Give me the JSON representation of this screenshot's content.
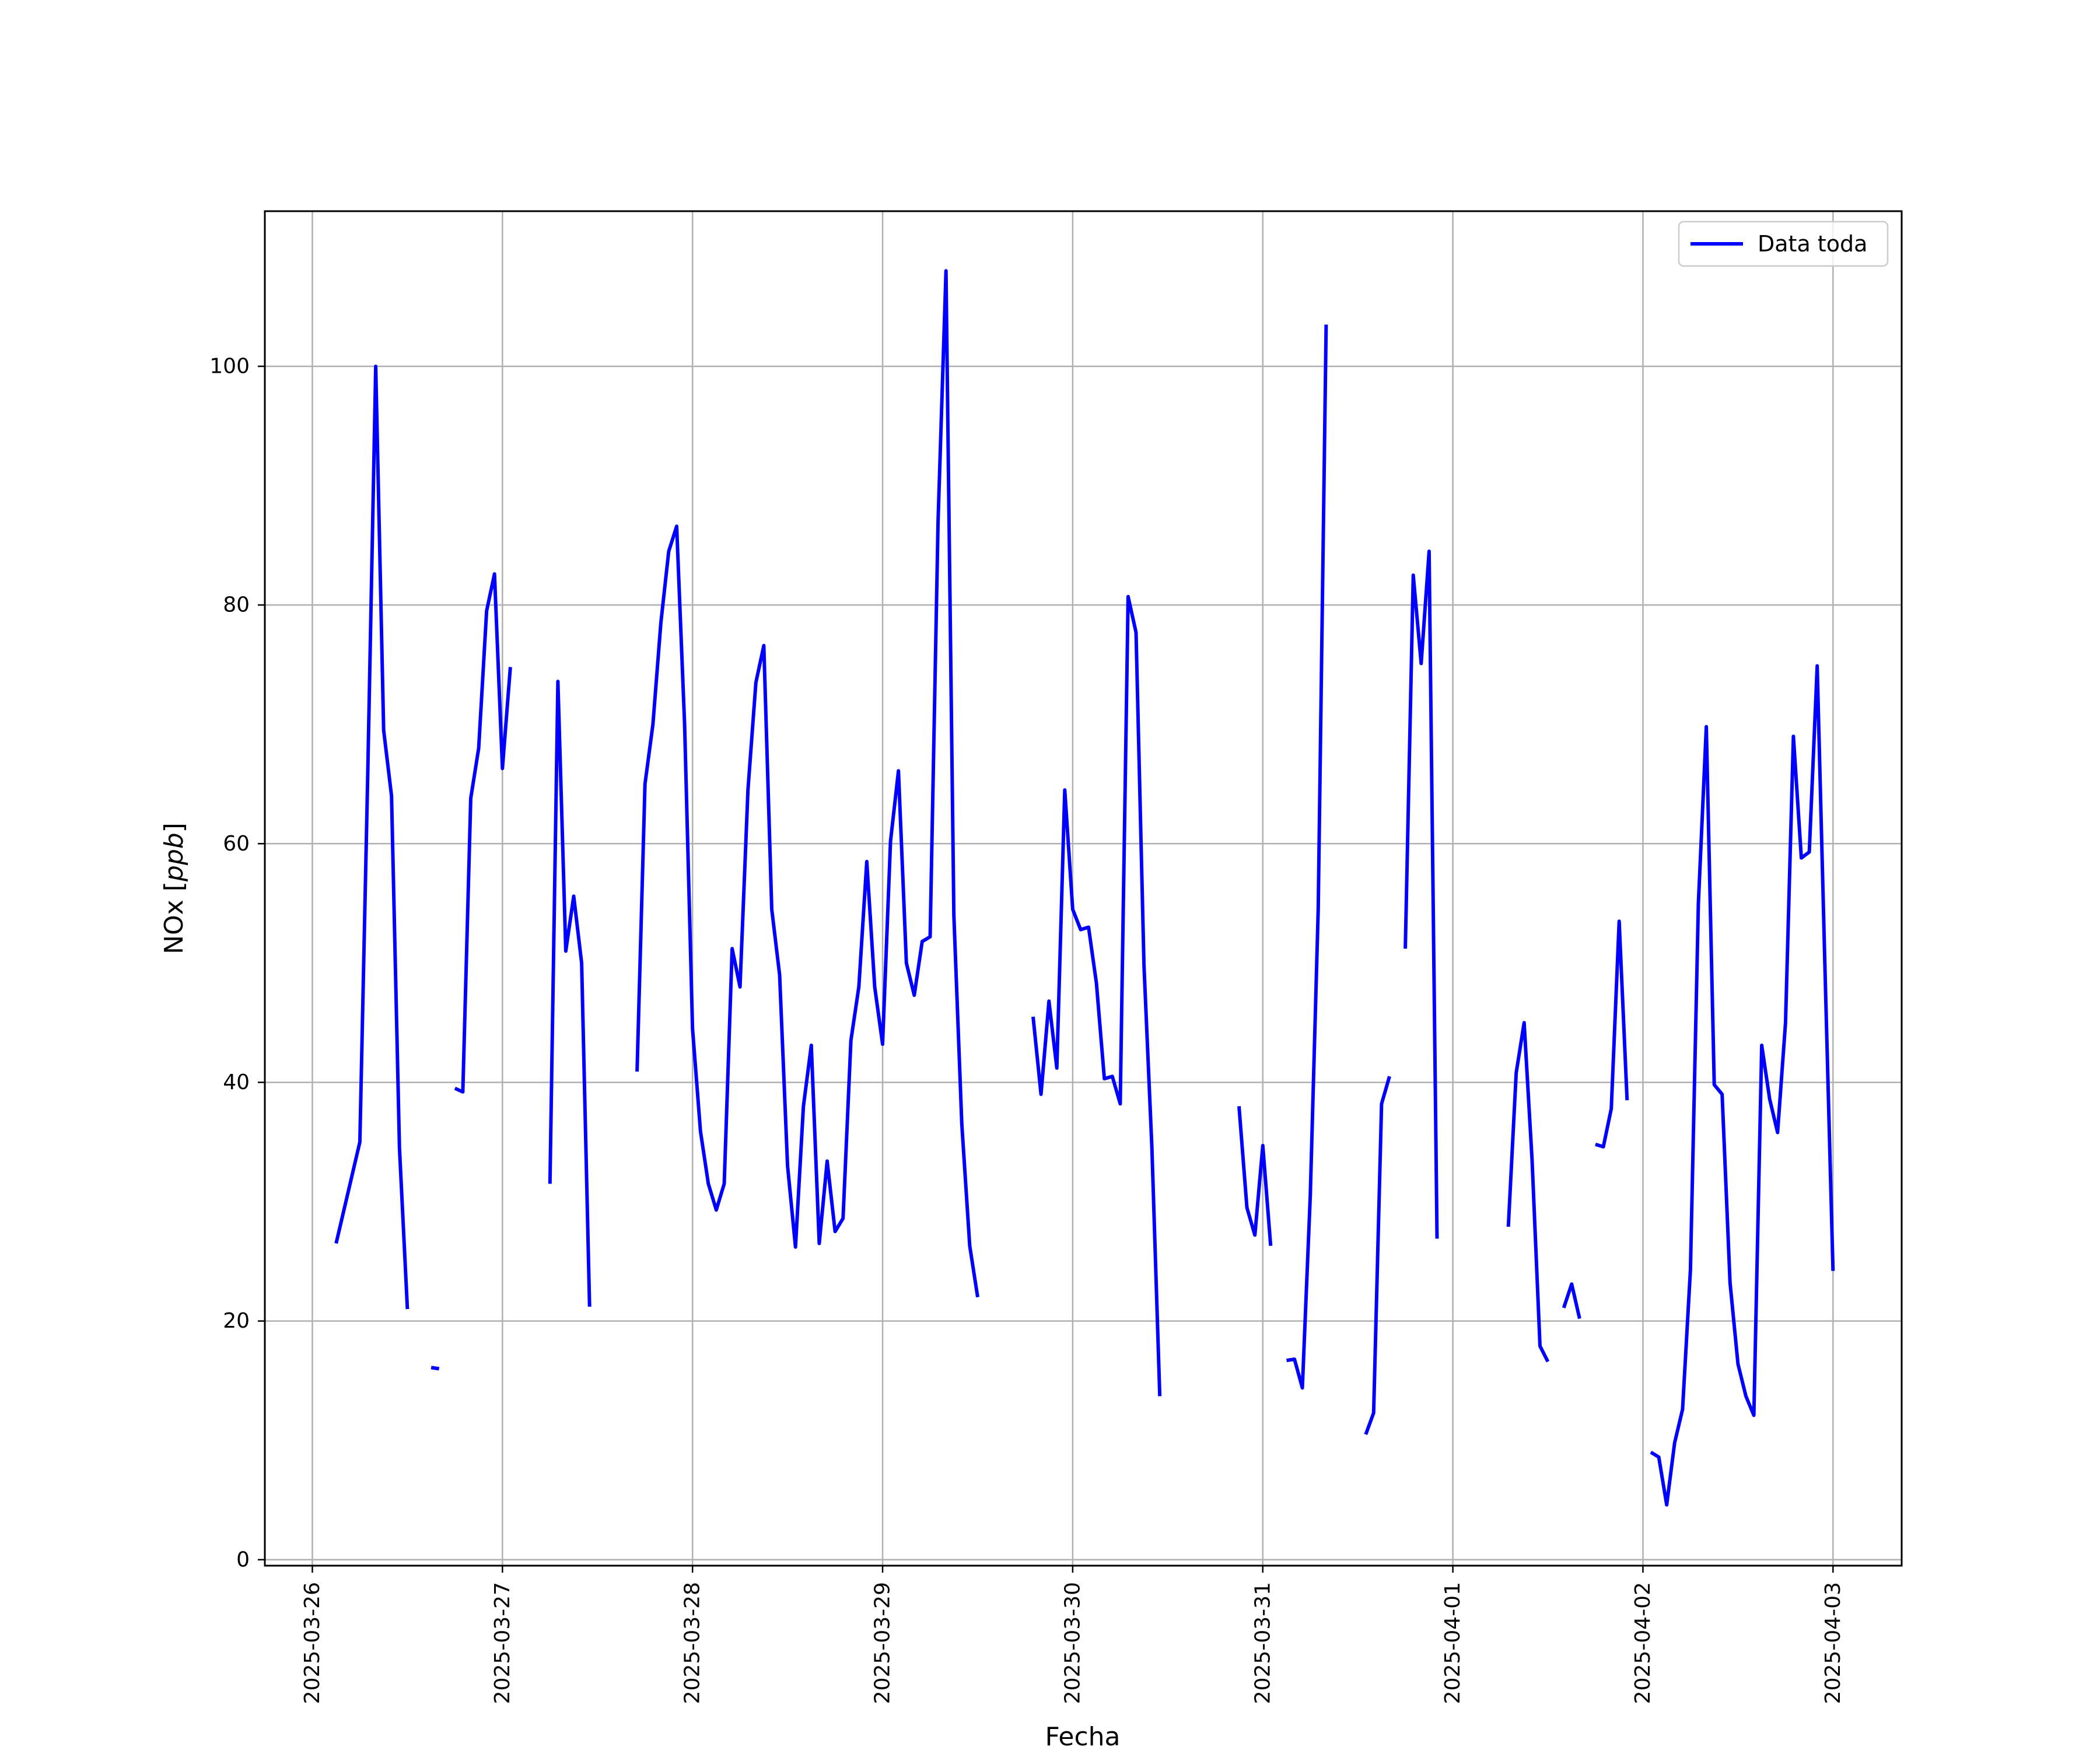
{
  "chart_data": {
    "type": "line",
    "title": "",
    "xlabel": "Fecha",
    "ylabel": "NOx [ppb]",
    "ylabel_parts": {
      "prefix": "NOx [",
      "unit": "ppb",
      "suffix": "]"
    },
    "xlim": [
      "2025-03-25 18:00",
      "2025-04-03 08:40"
    ],
    "ylim": [
      -0.5,
      113
    ],
    "x_ticks": [
      "2025-03-26",
      "2025-03-27",
      "2025-03-28",
      "2025-03-29",
      "2025-03-30",
      "2025-03-31",
      "2025-04-01",
      "2025-04-02",
      "2025-04-03"
    ],
    "y_ticks": [
      0,
      20,
      40,
      60,
      80,
      100
    ],
    "grid": true,
    "legend_position": "upper right",
    "series": [
      {
        "name": "Data toda",
        "color": "#0000ff",
        "segments": [
          [
            [
              "2025-03-26 03:00",
              26.5
            ],
            [
              "2025-03-26 06:00",
              35
            ],
            [
              "2025-03-26 07:00",
              66
            ],
            [
              "2025-03-26 08:00",
              100
            ],
            [
              "2025-03-26 09:00",
              69.5
            ],
            [
              "2025-03-26 10:00",
              64
            ],
            [
              "2025-03-26 11:00",
              34.5
            ],
            [
              "2025-03-26 12:00",
              21
            ]
          ],
          [
            [
              "2025-03-26 15:00",
              16.1
            ],
            [
              "2025-03-26 16:00",
              16
            ]
          ],
          [
            [
              "2025-03-26 18:00",
              39.5
            ],
            [
              "2025-03-26 19:00",
              39.2
            ],
            [
              "2025-03-26 20:00",
              63.8
            ],
            [
              "2025-03-26 21:00",
              68
            ],
            [
              "2025-03-26 22:00",
              79.5
            ],
            [
              "2025-03-26 23:00",
              82.6
            ],
            [
              "2025-03-27 00:00",
              66.3
            ],
            [
              "2025-03-27 01:00",
              74.8
            ]
          ],
          [
            [
              "2025-03-27 06:00",
              31.5
            ],
            [
              "2025-03-27 07:00",
              73.6
            ],
            [
              "2025-03-27 08:00",
              51
            ],
            [
              "2025-03-27 09:00",
              55.6
            ],
            [
              "2025-03-27 10:00",
              50
            ],
            [
              "2025-03-27 11:00",
              21.2
            ]
          ],
          [
            [
              "2025-03-27 17:00",
              40.9
            ],
            [
              "2025-03-27 18:00",
              65
            ],
            [
              "2025-03-27 19:00",
              70
            ],
            [
              "2025-03-27 20:00",
              78.5
            ],
            [
              "2025-03-27 21:00",
              84.5
            ],
            [
              "2025-03-27 22:00",
              86.6
            ],
            [
              "2025-03-27 23:00",
              70
            ],
            [
              "2025-03-28 00:00",
              44.5
            ],
            [
              "2025-03-28 01:00",
              35.9
            ],
            [
              "2025-03-28 02:00",
              31.5
            ],
            [
              "2025-03-28 03:00",
              29.3
            ],
            [
              "2025-03-28 04:00",
              31.5
            ],
            [
              "2025-03-28 05:00",
              51.2
            ],
            [
              "2025-03-28 06:00",
              48
            ],
            [
              "2025-03-28 07:00",
              64.5
            ],
            [
              "2025-03-28 08:00",
              73.5
            ],
            [
              "2025-03-28 09:00",
              76.6
            ],
            [
              "2025-03-28 10:00",
              54.5
            ],
            [
              "2025-03-28 11:00",
              49
            ],
            [
              "2025-03-28 12:00",
              33
            ],
            [
              "2025-03-28 13:00",
              26.2
            ],
            [
              "2025-03-28 14:00",
              38
            ],
            [
              "2025-03-28 15:00",
              43.1
            ],
            [
              "2025-03-28 16:00",
              26.5
            ],
            [
              "2025-03-28 17:00",
              33.4
            ],
            [
              "2025-03-28 18:00",
              27.5
            ],
            [
              "2025-03-28 19:00",
              28.6
            ],
            [
              "2025-03-28 20:00",
              43.5
            ],
            [
              "2025-03-28 21:00",
              48
            ],
            [
              "2025-03-28 22:00",
              58.5
            ],
            [
              "2025-03-28 23:00",
              48
            ],
            [
              "2025-03-29 00:00",
              43.2
            ],
            [
              "2025-03-29 01:00",
              60.2
            ],
            [
              "2025-03-29 02:00",
              66.1
            ],
            [
              "2025-03-29 03:00",
              50
            ],
            [
              "2025-03-29 04:00",
              47.3
            ],
            [
              "2025-03-29 05:00",
              51.8
            ],
            [
              "2025-03-29 06:00",
              52.2
            ],
            [
              "2025-03-29 07:00",
              87
            ],
            [
              "2025-03-29 08:00",
              108
            ],
            [
              "2025-03-29 09:00",
              54
            ],
            [
              "2025-03-29 10:00",
              36.5
            ],
            [
              "2025-03-29 11:00",
              26.3
            ],
            [
              "2025-03-29 12:00",
              22
            ]
          ],
          [
            [
              "2025-03-29 19:00",
              45.5
            ],
            [
              "2025-03-29 20:00",
              39
            ],
            [
              "2025-03-29 21:00",
              46.8
            ],
            [
              "2025-03-29 22:00",
              41.2
            ],
            [
              "2025-03-29 23:00",
              64.5
            ],
            [
              "2025-03-30 00:00",
              54.5
            ],
            [
              "2025-03-30 01:00",
              52.8
            ],
            [
              "2025-03-30 02:00",
              53
            ],
            [
              "2025-03-30 03:00",
              48.3
            ],
            [
              "2025-03-30 04:00",
              40.3
            ],
            [
              "2025-03-30 05:00",
              40.5
            ],
            [
              "2025-03-30 06:00",
              38.2
            ],
            [
              "2025-03-30 07:00",
              80.7
            ],
            [
              "2025-03-30 08:00",
              77.7
            ],
            [
              "2025-03-30 09:00",
              49.8
            ],
            [
              "2025-03-30 10:00",
              34.5
            ],
            [
              "2025-03-30 11:00",
              13.7
            ]
          ],
          [
            [
              "2025-03-30 21:00",
              38
            ],
            [
              "2025-03-30 22:00",
              29.5
            ],
            [
              "2025-03-30 23:00",
              27.2
            ],
            [
              "2025-03-31 00:00",
              34.7
            ],
            [
              "2025-03-31 01:00",
              26.3
            ]
          ],
          [
            [
              "2025-03-31 03:00",
              16.7
            ],
            [
              "2025-03-31 04:00",
              16.8
            ],
            [
              "2025-03-31 05:00",
              14.4
            ],
            [
              "2025-03-31 06:00",
              30.5
            ],
            [
              "2025-03-31 07:00",
              54.5
            ],
            [
              "2025-03-31 08:00",
              103.5
            ]
          ],
          [
            [
              "2025-03-31 13:00",
              10.5
            ],
            [
              "2025-03-31 14:00",
              12.3
            ],
            [
              "2025-03-31 15:00",
              38.2
            ],
            [
              "2025-03-31 16:00",
              40.5
            ]
          ],
          [
            [
              "2025-03-31 18:00",
              51.2
            ],
            [
              "2025-03-31 19:00",
              82.5
            ],
            [
              "2025-03-31 20:00",
              75.1
            ],
            [
              "2025-03-31 21:00",
              84.5
            ],
            [
              "2025-03-31 22:00",
              26.9
            ]
          ],
          [
            [
              "2025-04-01 07:00",
              27.9
            ],
            [
              "2025-04-01 08:00",
              40.8
            ],
            [
              "2025-04-01 09:00",
              45
            ],
            [
              "2025-04-01 10:00",
              33.5
            ],
            [
              "2025-04-01 11:00",
              17.9
            ],
            [
              "2025-04-01 12:00",
              16.6
            ]
          ],
          [
            [
              "2025-04-01 14:00",
              21.1
            ],
            [
              "2025-04-01 15:00",
              23.1
            ],
            [
              "2025-04-01 16:00",
              20.2
            ]
          ],
          [
            [
              "2025-04-01 18:00",
              34.8
            ],
            [
              "2025-04-01 19:00",
              34.6
            ],
            [
              "2025-04-01 20:00",
              37.8
            ],
            [
              "2025-04-01 21:00",
              53.5
            ],
            [
              "2025-04-01 22:00",
              38.5
            ]
          ],
          [
            [
              "2025-04-02 01:00",
              9.0
            ],
            [
              "2025-04-02 02:00",
              8.6
            ],
            [
              "2025-04-02 03:00",
              4.6
            ],
            [
              "2025-04-02 04:00",
              9.8
            ],
            [
              "2025-04-02 05:00",
              12.6
            ],
            [
              "2025-04-02 06:00",
              24.3
            ],
            [
              "2025-04-02 07:00",
              55
            ],
            [
              "2025-04-02 08:00",
              69.8
            ],
            [
              "2025-04-02 09:00",
              39.8
            ],
            [
              "2025-04-02 10:00",
              39
            ],
            [
              "2025-04-02 11:00",
              23.2
            ],
            [
              "2025-04-02 12:00",
              16.4
            ],
            [
              "2025-04-02 13:00",
              13.7
            ],
            [
              "2025-04-02 14:00",
              12.1
            ],
            [
              "2025-04-02 15:00",
              43.1
            ],
            [
              "2025-04-02 16:00",
              38.6
            ],
            [
              "2025-04-02 17:00",
              35.8
            ],
            [
              "2025-04-02 18:00",
              45
            ],
            [
              "2025-04-02 19:00",
              69
            ],
            [
              "2025-04-02 20:00",
              58.8
            ],
            [
              "2025-04-02 21:00",
              59.3
            ],
            [
              "2025-04-02 22:00",
              74.9
            ],
            [
              "2025-04-02 23:00",
              49
            ],
            [
              "2025-04-03 00:00",
              24.2
            ]
          ]
        ]
      }
    ]
  }
}
